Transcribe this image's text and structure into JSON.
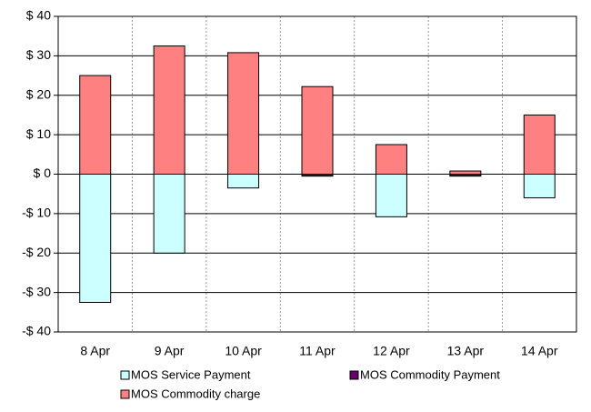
{
  "chart_data": {
    "type": "bar",
    "stacked": true,
    "categories": [
      "8 Apr",
      "9 Apr",
      "10 Apr",
      "11 Apr",
      "12 Apr",
      "13 Apr",
      "14 Apr"
    ],
    "series": [
      {
        "name": "MOS Service Payment",
        "color": "#ccffff",
        "values": [
          -32.5,
          -20,
          -3.5,
          -0.3,
          -10.8,
          -0.3,
          -6
        ]
      },
      {
        "name": "MOS Commodity Payment",
        "color": "#660066",
        "values": [
          0,
          0,
          0,
          -0.2,
          0,
          -0.2,
          0
        ]
      },
      {
        "name": "MOS Commodity charge",
        "color": "#ff8080",
        "values": [
          25,
          32.5,
          30.8,
          22.2,
          7.5,
          0.8,
          15
        ]
      }
    ],
    "ylim": [
      -40,
      40
    ],
    "yticks": [
      {
        "value": -40,
        "label": "-$ 40"
      },
      {
        "value": -30,
        "label": "-$ 30"
      },
      {
        "value": -20,
        "label": "-$ 20"
      },
      {
        "value": -10,
        "label": "-$ 10"
      },
      {
        "value": 0,
        "label": "$ 0"
      },
      {
        "value": 10,
        "label": "$ 10"
      },
      {
        "value": 20,
        "label": "$ 20"
      },
      {
        "value": 30,
        "label": "$ 30"
      },
      {
        "value": 40,
        "label": "$ 40"
      }
    ],
    "grid": true,
    "legend": "bottom"
  }
}
